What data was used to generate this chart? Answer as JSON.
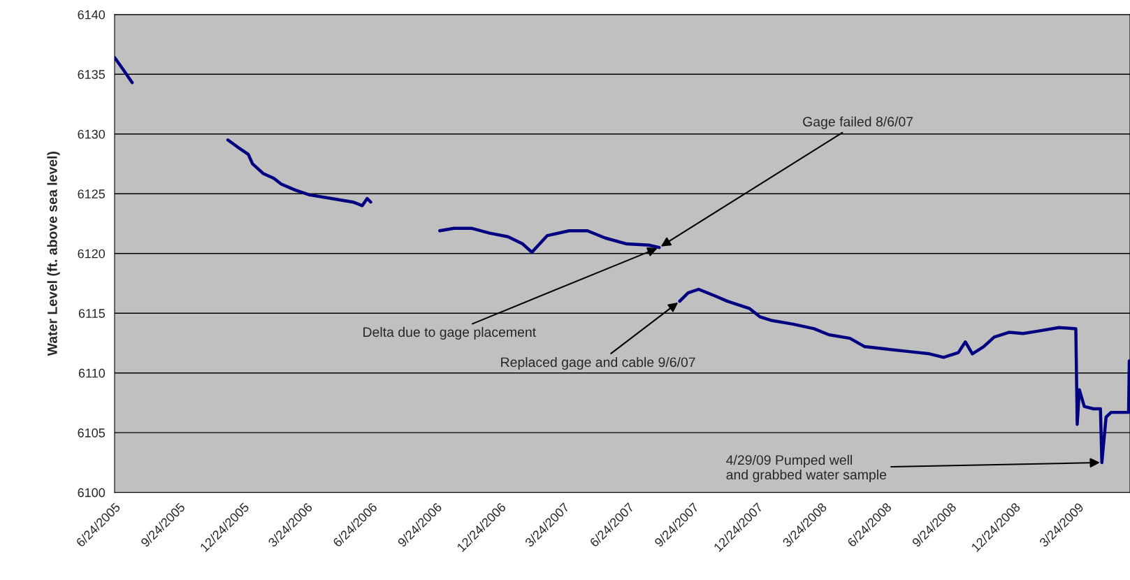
{
  "chart_data": {
    "type": "line",
    "ylabel": "Water Level (ft. above sea level)",
    "x": [
      "2005-06-24",
      "2005-07-05",
      "2005-07-19",
      "2005-08-01",
      "2005-12-02",
      "2005-12-16",
      "2005-12-31",
      "2006-01-06",
      "2006-01-21",
      "2006-02-05",
      "2006-02-16",
      "2006-03-08",
      "2006-03-28",
      "2006-04-28",
      "2006-05-29",
      "2006-06-11",
      "2006-06-18",
      "2006-06-23",
      "2006-07-01",
      "2006-09-29",
      "2006-10-19",
      "2006-11-14",
      "2006-12-09",
      "2007-01-04",
      "2007-01-25",
      "2007-02-07",
      "2007-03-01",
      "2007-04-01",
      "2007-04-27",
      "2007-05-22",
      "2007-06-22",
      "2007-07-23",
      "2007-08-07",
      "2007-08-20",
      "2007-09-05",
      "2007-09-17",
      "2007-10-02",
      "2007-10-23",
      "2007-11-12",
      "2007-12-13",
      "2007-12-28",
      "2008-01-13",
      "2008-02-12",
      "2008-03-14",
      "2008-04-04",
      "2008-05-04",
      "2008-05-25",
      "2008-06-25",
      "2008-07-25",
      "2008-08-25",
      "2008-09-14",
      "2008-10-05",
      "2008-10-15",
      "2008-10-25",
      "2008-11-10",
      "2008-11-25",
      "2008-12-16",
      "2009-01-05",
      "2009-01-26",
      "2009-02-25",
      "2009-03-21",
      "2009-03-23",
      "2009-03-26",
      "2009-04-02",
      "2009-04-15",
      "2009-04-25",
      "2009-04-27",
      "2009-05-03",
      "2009-05-10",
      "2009-05-25",
      "2009-06-04",
      "2009-06-05"
    ],
    "series": [
      {
        "color": "#000080",
        "values": [
          6136.4,
          6135.5,
          6134.3,
          null,
          6129.5,
          6128.9,
          6128.3,
          6127.5,
          6126.7,
          6126.3,
          6125.8,
          6125.3,
          6124.9,
          6124.6,
          6124.3,
          6124.0,
          6124.6,
          6124.3,
          null,
          6121.9,
          6122.1,
          6122.1,
          6121.7,
          6121.4,
          6120.8,
          6120.1,
          6121.5,
          6121.9,
          6121.9,
          6121.3,
          6120.8,
          6120.7,
          6120.5,
          null,
          6116.0,
          6116.7,
          6117.0,
          6116.5,
          6116.0,
          6115.4,
          6114.7,
          6114.4,
          6114.1,
          6113.7,
          6113.2,
          6112.9,
          6112.2,
          6112.0,
          6111.8,
          6111.6,
          6111.3,
          6111.7,
          6112.6,
          6111.6,
          6112.2,
          6113.0,
          6113.4,
          6113.3,
          6113.5,
          6113.8,
          6113.7,
          6105.7,
          6108.6,
          6107.2,
          6107.0,
          6107.0,
          6102.5,
          6106.3,
          6106.7,
          6106.7,
          6106.7,
          6111.0
        ]
      }
    ],
    "xlim": [
      "2005-06-24",
      "2009-06-06"
    ],
    "xticks": [
      {
        "value": "2005-06-24",
        "label": "6/24/2005"
      },
      {
        "value": "2005-09-24",
        "label": "9/24/2005"
      },
      {
        "value": "2005-12-24",
        "label": "12/24/2005"
      },
      {
        "value": "2006-03-24",
        "label": "3/24/2006"
      },
      {
        "value": "2006-06-24",
        "label": "6/24/2006"
      },
      {
        "value": "2006-09-24",
        "label": "9/24/2006"
      },
      {
        "value": "2006-12-24",
        "label": "12/24/2006"
      },
      {
        "value": "2007-03-24",
        "label": "3/24/2007"
      },
      {
        "value": "2007-06-24",
        "label": "6/24/2007"
      },
      {
        "value": "2007-09-24",
        "label": "9/24/2007"
      },
      {
        "value": "2007-12-24",
        "label": "12/24/2007"
      },
      {
        "value": "2008-03-24",
        "label": "3/24/2008"
      },
      {
        "value": "2008-06-24",
        "label": "6/24/2008"
      },
      {
        "value": "2008-09-24",
        "label": "9/24/2008"
      },
      {
        "value": "2008-12-24",
        "label": "12/24/2008"
      },
      {
        "value": "2009-03-24",
        "label": "3/24/2009"
      }
    ],
    "ylim": [
      6100,
      6140
    ],
    "yticks": [
      6100,
      6105,
      6110,
      6115,
      6120,
      6125,
      6130,
      6135,
      6140
    ],
    "grid": "y",
    "marker": "none",
    "line_style": "solid",
    "annotations": [
      {
        "text": "Gage failed 8/6/07",
        "x": "2007-08-07",
        "y": 6120.5
      },
      {
        "text": "Delta due to gage placement",
        "x": "2007-08-07",
        "y": 6120.5
      },
      {
        "text": "Replaced gage and cable 9/6/07",
        "x": "2007-09-05",
        "y": 6116.0
      },
      {
        "text": "4/29/09 Pumped well\nand grabbed water sample",
        "x": "2009-04-27",
        "y": 6102.5
      }
    ]
  }
}
